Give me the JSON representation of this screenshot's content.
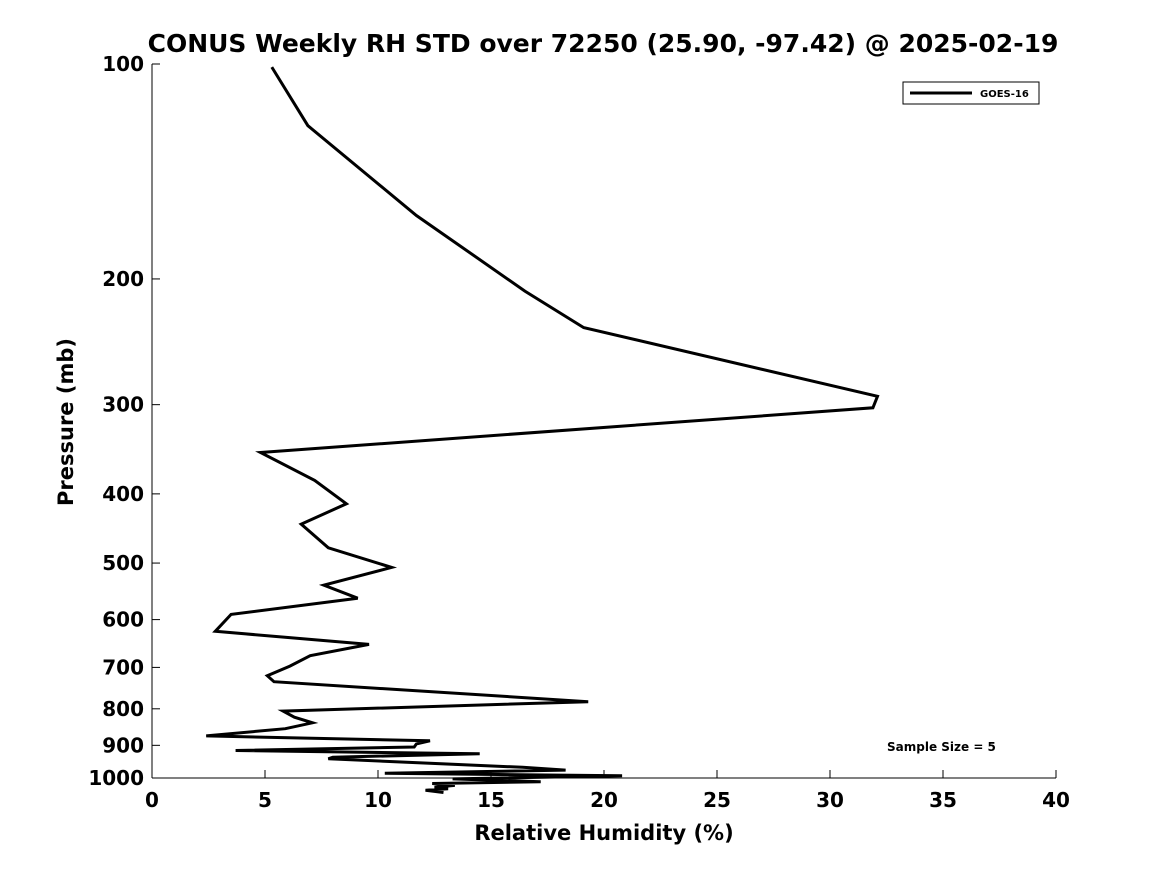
{
  "chart_data": {
    "type": "line",
    "title": "CONUS Weekly RH STD over 72250 (25.90, -97.42) @ 2025-02-19",
    "xlabel": "Relative Humidity (%)",
    "ylabel": "Pressure (mb)",
    "xlim": [
      0,
      40
    ],
    "ylim": [
      100,
      1000
    ],
    "y_scale": "log",
    "y_reversed": true,
    "x_ticks": [
      0,
      5,
      10,
      15,
      20,
      25,
      30,
      35,
      40
    ],
    "x_tick_labels": [
      "0",
      "5",
      "10",
      "15",
      "20",
      "25",
      "30",
      "35",
      "40"
    ],
    "y_ticks": [
      100,
      200,
      300,
      400,
      500,
      600,
      700,
      800,
      900,
      1000
    ],
    "y_tick_labels": [
      "100",
      "200",
      "300",
      "400",
      "500",
      "600",
      "700",
      "800",
      "900",
      "1000"
    ],
    "grid": false,
    "legend_position": "top-right",
    "annotation": "Sample Size = 5",
    "series": [
      {
        "name": "GOES-16",
        "color": "#000000",
        "x": [
          5.3,
          6.9,
          11.7,
          16.5,
          19.1,
          32.1,
          31.9,
          4.8,
          7.2,
          8.6,
          6.6,
          7.8,
          10.6,
          7.6,
          9.1,
          3.5,
          2.8,
          9.6,
          7.0,
          6.1,
          5.1,
          5.4,
          19.3,
          5.8,
          6.3,
          7.1,
          5.9,
          2.4,
          12.3,
          11.7,
          11.6,
          3.7,
          14.5,
          8.0,
          7.8,
          16.4,
          18.3,
          10.3,
          20.8,
          13.3,
          17.2,
          12.4,
          13.4,
          12.5,
          13.1,
          12.1,
          12.9
        ],
        "y": [
          101,
          122,
          163,
          208,
          234,
          292,
          303,
          350,
          383,
          413,
          441,
          476,
          507,
          537,
          560,
          590,
          623,
          650,
          674,
          697,
          719,
          733,
          782,
          806,
          822,
          837,
          853,
          873,
          887,
          896,
          905,
          915,
          925,
          935,
          940,
          966,
          975,
          985,
          993,
          1003,
          1012,
          1018,
          1024,
          1030,
          1035,
          1040,
          1048
        ]
      }
    ]
  }
}
